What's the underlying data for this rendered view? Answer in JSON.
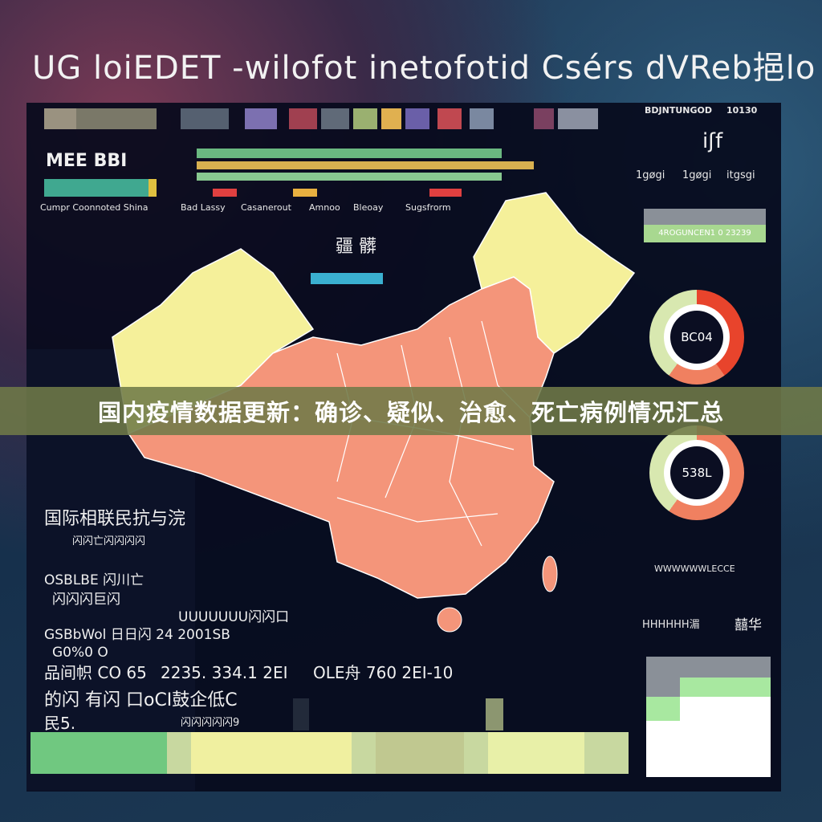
{
  "header": {
    "title": "UG loiEDET -wilofot inetofotid Csérs dVReb挹lo"
  },
  "banner": {
    "text": "国内疫情数据更新：确诊、疑似、治愈、死亡病例情况汇总"
  },
  "legend": {
    "labels": [
      "Cumpr Coonnoted Shina",
      "Bad Lassy",
      "Casanerout",
      "Amnoo",
      "Bleoay",
      "Sugsfrorm"
    ],
    "left_label": "MEE BBI"
  },
  "map": {
    "label": "疆 髒",
    "colors": {
      "main": "#f4957a",
      "highlight": "#f5f09a",
      "border": "#ffffff"
    }
  },
  "right": {
    "top_labels": [
      "BDJNTUNGOD",
      "10130"
    ],
    "mid_label": "iʃf",
    "sub_labels": [
      "1gøgi",
      "1gøgi",
      "itgsgi"
    ],
    "stat_bar": "4ROGUNCEN1 0 23239",
    "donut1": "BC04",
    "donut2": "538L",
    "note": "WWWWWWLECCE",
    "chart_labels": [
      "HHHHHH湄",
      "囍华"
    ]
  },
  "left": {
    "heading": "国际相联民抗与浣",
    "sub": "闪闪亡闪闪闪闪",
    "rows": [
      "OSBLBE 闪川亡",
      "闪闪闪巨闪"
    ]
  },
  "stats": {
    "row1": "UUUUUUU闪闪口",
    "row2a": "GSBbWol 日日闪 24 2001SB",
    "row2b": "G0%0 O",
    "row3a": "品间帜 CO 65",
    "row3b": "2235. 334.1 2EI",
    "row3c": "OLE舟 760 2EI-10",
    "row4": "的闪 有闪 口oCI鼓企低C",
    "row5a": "民5.",
    "row5b": "闪闪闪闪闪9"
  },
  "colors": {
    "panel": "#060a1c",
    "accent_red": "#e8442c",
    "accent_green": "#a8d890",
    "accent_orange": "#f08060"
  }
}
